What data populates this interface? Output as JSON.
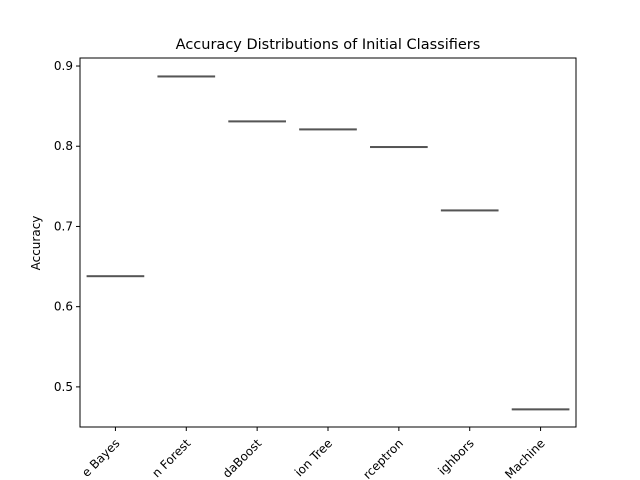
{
  "chart_data": {
    "type": "box",
    "title": "Accuracy Distributions of Initial Classifiers",
    "xlabel": "",
    "ylabel": "Accuracy",
    "ylim": [
      0.45,
      0.91
    ],
    "yticks": [
      0.5,
      0.6,
      0.7,
      0.8,
      0.9
    ],
    "ytick_labels": [
      "0.5",
      "0.6",
      "0.7",
      "0.8",
      "0.9"
    ],
    "categories": [
      "Naive Bayes",
      "Random Forest",
      "AdaBoost",
      "Decision Tree",
      "Perceptron",
      "K-Nearest Neighbors",
      "Support Vector Machine"
    ],
    "category_labels_visible": [
      "e Bayes",
      "n Forest",
      "daBoost",
      "ion Tree",
      "rceptron",
      "ighbors",
      "Machine"
    ],
    "values": [
      0.638,
      0.887,
      0.831,
      0.821,
      0.799,
      0.72,
      0.472
    ],
    "tick_label_rotation_deg": 45,
    "grid": false,
    "box_color": "#555555"
  }
}
